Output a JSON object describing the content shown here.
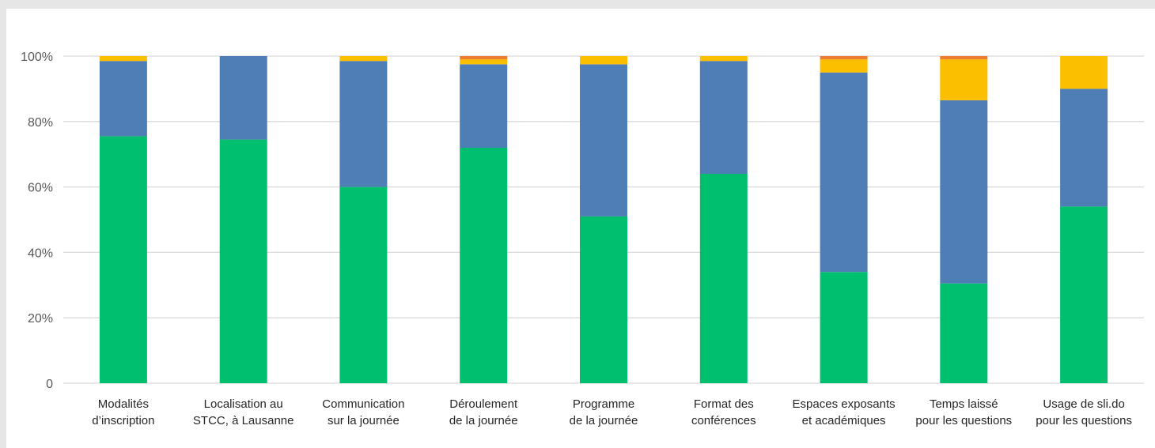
{
  "chart_data": {
    "type": "bar",
    "stacked": true,
    "percent": true,
    "categories": [
      [
        "Modalités",
        "d’inscription"
      ],
      [
        "Localisation au",
        "STCC, à Lausanne"
      ],
      [
        "Communication",
        "sur la journée"
      ],
      [
        "Déroulement",
        "de la journée"
      ],
      [
        "Programme",
        "de la journée"
      ],
      [
        "Format des",
        "conférences"
      ],
      [
        "Espaces exposants",
        "et académiques"
      ],
      [
        "Temps laissé",
        "pour les questions"
      ],
      [
        "Usage de sli.do",
        "pour les questions"
      ]
    ],
    "series": [
      {
        "color": "#00bf6f",
        "values": [
          75.5,
          74.5,
          60,
          72,
          51,
          64,
          34,
          30.5,
          54
        ]
      },
      {
        "color": "#4f7db5",
        "values": [
          23,
          25.5,
          38.5,
          25.5,
          46.5,
          34.5,
          61,
          56,
          36
        ]
      },
      {
        "color": "#fbbf00",
        "values": [
          1.5,
          0,
          1.5,
          1.5,
          2.5,
          1.5,
          4,
          12.5,
          10
        ]
      },
      {
        "color": "#ed7d31",
        "values": [
          0,
          0,
          0,
          1,
          0,
          0,
          1,
          1,
          0
        ]
      }
    ],
    "ylim": [
      0,
      100
    ],
    "yticks": [
      "0",
      "20%",
      "40%",
      "60%",
      "80%",
      "100%"
    ],
    "grid": true,
    "legend": "none"
  }
}
